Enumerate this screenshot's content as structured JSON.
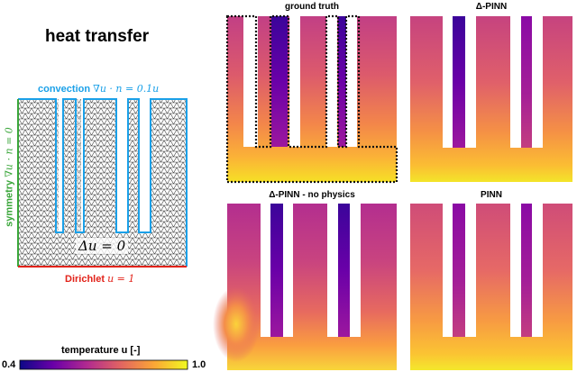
{
  "figure_title": "heat transfer",
  "boundary_labels": {
    "convection_prefix": "convection",
    "convection_eq": "∇u · n = 0.1u",
    "symmetry_prefix": "symmetry",
    "symmetry_eq": "∇u · n = 0",
    "dirichlet_prefix": "Dirichlet",
    "dirichlet_eq": "u = 1",
    "domain_eq": "Δu = 0"
  },
  "panels": [
    {
      "title": "ground truth"
    },
    {
      "title": "Δ-PINN"
    },
    {
      "title": "Δ-PINN - no physics"
    },
    {
      "title": "PINN"
    }
  ],
  "colorbar": {
    "label": "temperature u [-]",
    "min_label": "0.4",
    "max_label": "1.0",
    "colormap": [
      "#0d0887",
      "#6a00a8",
      "#b12a90",
      "#e16462",
      "#fca636",
      "#f0f921"
    ]
  }
}
